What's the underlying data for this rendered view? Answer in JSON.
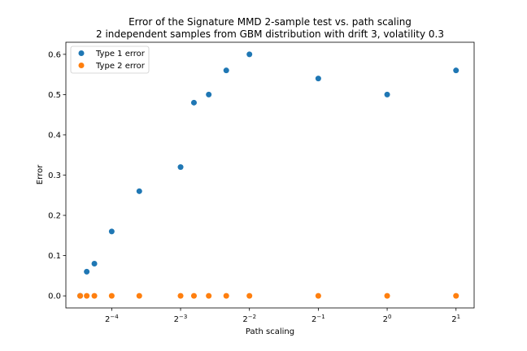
{
  "chart_data": {
    "type": "scatter",
    "title": "Error of the Signature MMD 2-sample test vs. path scaling",
    "subtitle": "2 independent samples from GBM distribution with drift 3, volatility 0.3",
    "xlabel": "Path scaling",
    "ylabel": "Error",
    "xscale": "log2",
    "xlim": [
      0.0394,
      2.4
    ],
    "ylim": [
      -0.03,
      0.63
    ],
    "grid": false,
    "legend_position": "top-left",
    "xticks": [
      {
        "value": 0.0625,
        "base": "2",
        "exp": "−4"
      },
      {
        "value": 0.125,
        "base": "2",
        "exp": "−3"
      },
      {
        "value": 0.25,
        "base": "2",
        "exp": "−2"
      },
      {
        "value": 0.5,
        "base": "2",
        "exp": "−1"
      },
      {
        "value": 1,
        "base": "2",
        "exp": "0"
      },
      {
        "value": 2,
        "base": "2",
        "exp": "1"
      }
    ],
    "yticks": [
      "0.0",
      "0.1",
      "0.2",
      "0.3",
      "0.4",
      "0.5",
      "0.6"
    ],
    "series": [
      {
        "name": "Type 1 error",
        "color": "#1f77b4",
        "x": [
          0.0455,
          0.0486,
          0.0525,
          0.0625,
          0.0825,
          0.125,
          0.143,
          0.166,
          0.198,
          0.25,
          0.5,
          1,
          2
        ],
        "y": [
          0.0,
          0.06,
          0.08,
          0.16,
          0.26,
          0.32,
          0.48,
          0.5,
          0.56,
          0.6,
          0.54,
          0.5,
          0.56
        ]
      },
      {
        "name": "Type 2 error",
        "color": "#ff7f0e",
        "x": [
          0.0455,
          0.0486,
          0.0525,
          0.0625,
          0.0825,
          0.125,
          0.143,
          0.166,
          0.198,
          0.25,
          0.5,
          1,
          2
        ],
        "y": [
          0,
          0,
          0,
          0,
          0,
          0,
          0,
          0,
          0,
          0,
          0,
          0,
          0
        ]
      }
    ]
  }
}
